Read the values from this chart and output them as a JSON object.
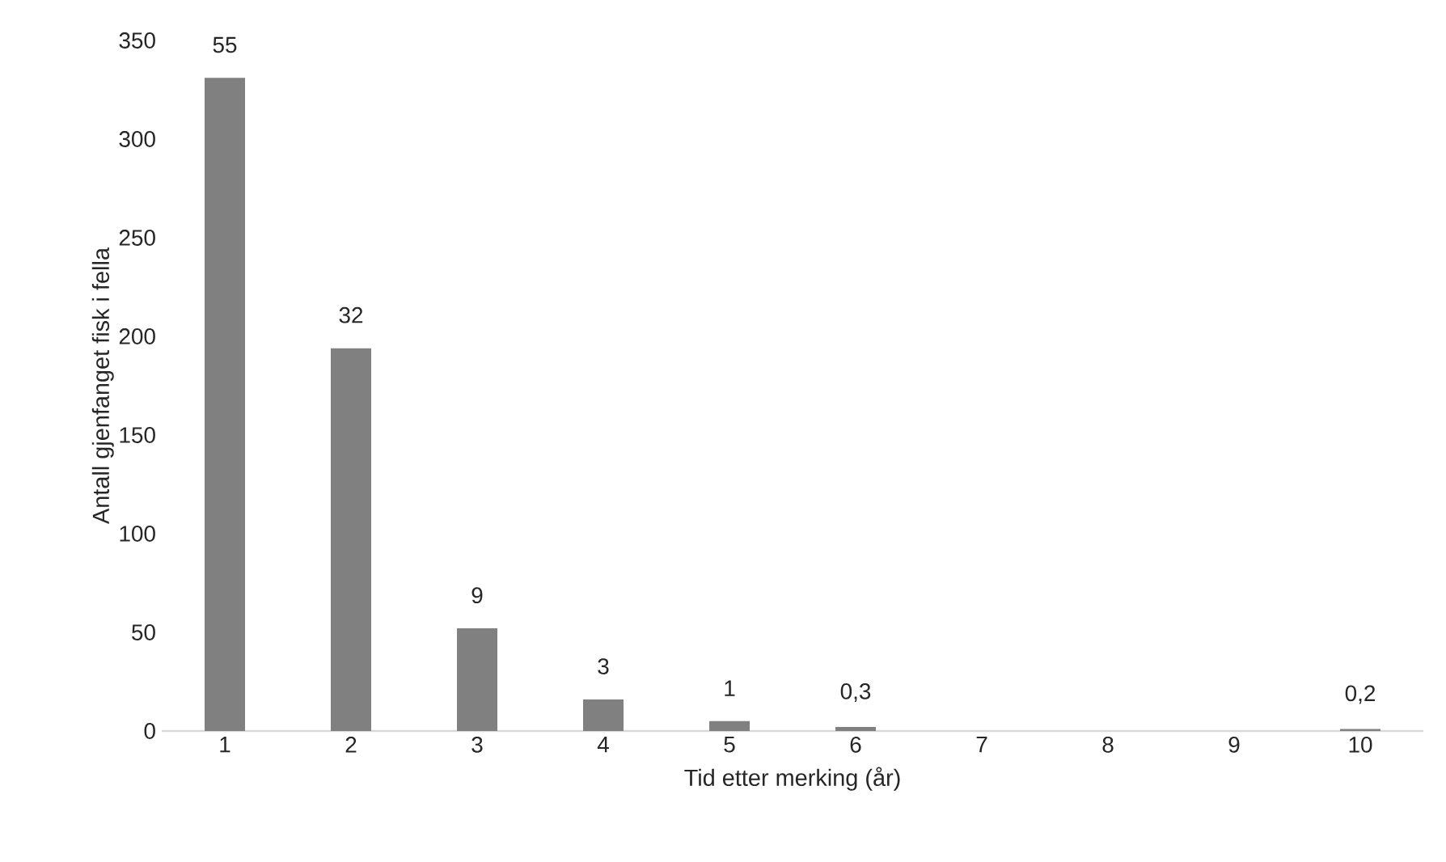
{
  "chart_data": {
    "type": "bar",
    "xlabel": "Tid etter merking (år)",
    "ylabel": "Antall gjenfanget fisk i fella",
    "categories": [
      "1",
      "2",
      "3",
      "4",
      "5",
      "6",
      "7",
      "8",
      "9",
      "10"
    ],
    "values": [
      331,
      194,
      52,
      16,
      5,
      2,
      0,
      0,
      0,
      1
    ],
    "annotations": [
      {
        "text": "55",
        "x": "1",
        "y": 331
      },
      {
        "text": "32",
        "x": "2",
        "y": 194
      },
      {
        "text": "9",
        "x": "3",
        "y": 52
      },
      {
        "text": "3",
        "x": "4",
        "y": 16
      },
      {
        "text": "1",
        "x": "5",
        "y": 5
      },
      {
        "text": "0,3",
        "x": "6",
        "y": 2
      },
      {
        "text": "0,2",
        "x": "10",
        "y": 1
      }
    ],
    "color": "#808080",
    "ylim": [
      0,
      350
    ],
    "yticks": [
      0,
      50,
      100,
      150,
      200,
      250,
      300,
      350
    ]
  }
}
